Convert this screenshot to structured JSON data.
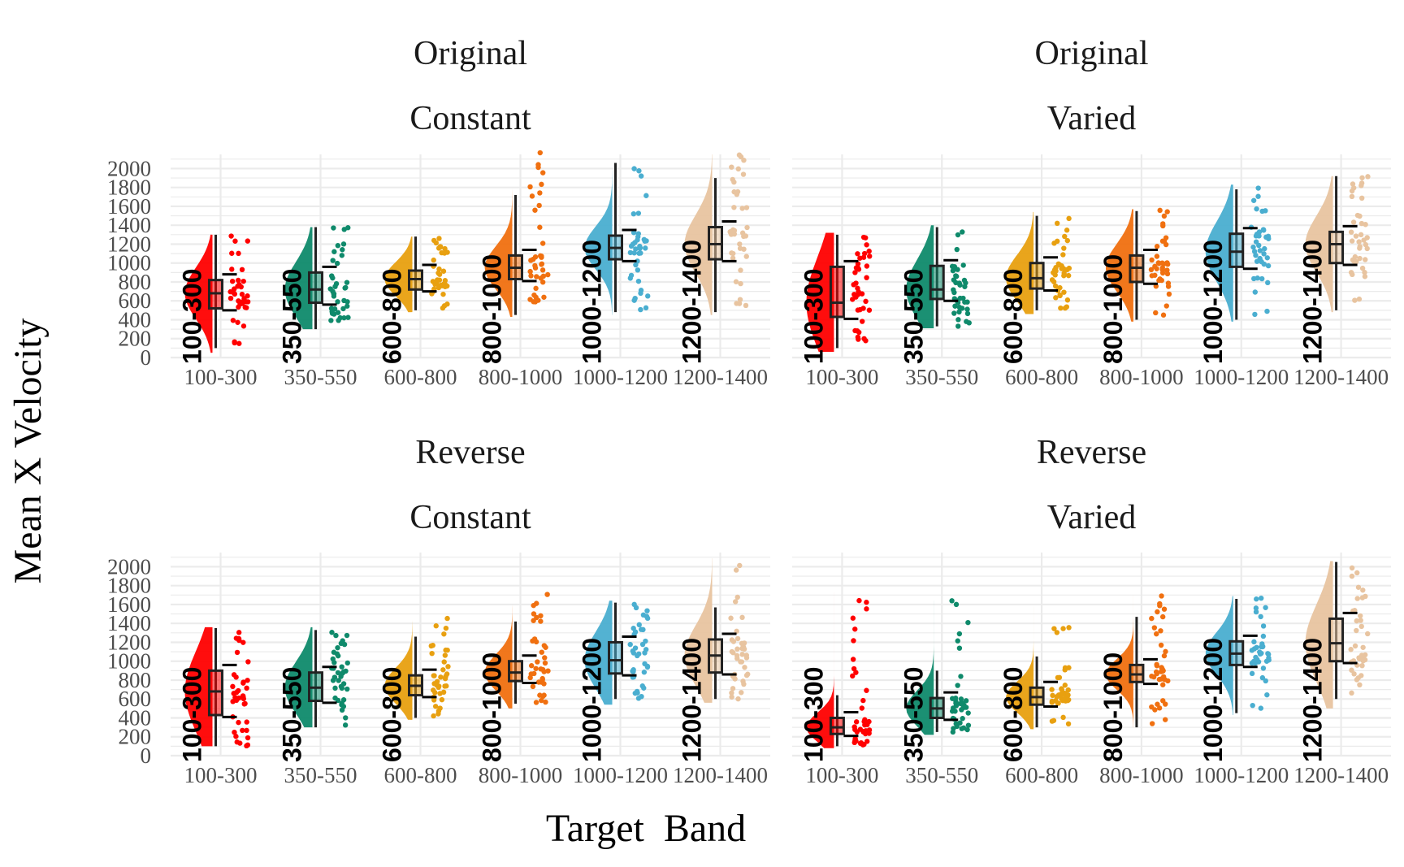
{
  "chart_data": {
    "type": "raincloud",
    "xlabel": "Target  Band",
    "ylabel": "Mean X Velocity",
    "ylim": [
      0,
      2150
    ],
    "y_ticks": [
      0,
      200,
      400,
      600,
      800,
      1000,
      1200,
      1400,
      1600,
      1800,
      2000
    ],
    "y_tick_labels": [
      "0",
      "200",
      "400",
      "600",
      "800",
      "1000",
      "1200",
      "1400",
      "1600",
      "1800",
      "2000"
    ],
    "grid": true,
    "legend": "none",
    "categories": [
      "100-300",
      "350-550",
      "600-800",
      "800-1000",
      "1000-1200",
      "1200-1400"
    ],
    "colors": [
      "#ff0000",
      "#0f8a6b",
      "#e8a010",
      "#f07010",
      "#4aaed0",
      "#e8c4a0"
    ],
    "panels": [
      {
        "strip": [
          "Original",
          "Constant"
        ],
        "boxes": [
          {
            "min": 100,
            "q1": 520,
            "median": 680,
            "q3": 820,
            "max": 1300,
            "lo": 50,
            "hi": 1300
          },
          {
            "min": 300,
            "q1": 580,
            "median": 720,
            "q3": 900,
            "max": 1380,
            "lo": 300,
            "hi": 1380
          },
          {
            "min": 500,
            "q1": 720,
            "median": 830,
            "q3": 920,
            "max": 1280,
            "lo": 480,
            "hi": 1280
          },
          {
            "min": 450,
            "q1": 830,
            "median": 950,
            "q3": 1080,
            "max": 1720,
            "lo": 430,
            "hi": 2200
          },
          {
            "min": 480,
            "q1": 1040,
            "median": 1160,
            "q3": 1290,
            "max": 2060,
            "lo": 450,
            "hi": 2060
          },
          {
            "min": 480,
            "q1": 1040,
            "median": 1200,
            "q3": 1380,
            "max": 1900,
            "lo": 450,
            "hi": 2150
          }
        ]
      },
      {
        "strip": [
          "Original",
          "Varied"
        ],
        "boxes": [
          {
            "min": 100,
            "q1": 430,
            "median": 580,
            "q3": 960,
            "max": 1300,
            "lo": 60,
            "hi": 1320
          },
          {
            "min": 330,
            "q1": 620,
            "median": 720,
            "q3": 970,
            "max": 1380,
            "lo": 310,
            "hi": 1400
          },
          {
            "min": 500,
            "q1": 730,
            "median": 840,
            "q3": 1000,
            "max": 1500,
            "lo": 460,
            "hi": 1540
          },
          {
            "min": 400,
            "q1": 800,
            "median": 950,
            "q3": 1080,
            "max": 1550,
            "lo": 380,
            "hi": 1570
          },
          {
            "min": 400,
            "q1": 960,
            "median": 1120,
            "q3": 1310,
            "max": 1780,
            "lo": 380,
            "hi": 1830
          },
          {
            "min": 500,
            "q1": 1000,
            "median": 1200,
            "q3": 1330,
            "max": 1920,
            "lo": 480,
            "hi": 1920
          }
        ]
      },
      {
        "strip": [
          "Reverse",
          "Constant"
        ],
        "boxes": [
          {
            "min": 100,
            "q1": 430,
            "median": 680,
            "q3": 900,
            "max": 1350,
            "lo": 100,
            "hi": 1360
          },
          {
            "min": 300,
            "q1": 580,
            "median": 720,
            "q3": 880,
            "max": 1330,
            "lo": 300,
            "hi": 1360
          },
          {
            "min": 400,
            "q1": 640,
            "median": 740,
            "q3": 850,
            "max": 1260,
            "lo": 380,
            "hi": 1470
          },
          {
            "min": 550,
            "q1": 790,
            "median": 880,
            "q3": 1000,
            "max": 1420,
            "lo": 500,
            "hi": 1820
          },
          {
            "min": 600,
            "q1": 870,
            "median": 1010,
            "q3": 1200,
            "max": 1620,
            "lo": 540,
            "hi": 1640
          },
          {
            "min": 600,
            "q1": 880,
            "median": 1060,
            "q3": 1230,
            "max": 1570,
            "lo": 560,
            "hi": 2090
          }
        ]
      },
      {
        "strip": [
          "Reverse",
          "Varied"
        ],
        "boxes": [
          {
            "min": 100,
            "q1": 230,
            "median": 300,
            "q3": 400,
            "max": 640,
            "lo": 80,
            "hi": 1730
          },
          {
            "min": 250,
            "q1": 400,
            "median": 500,
            "q3": 610,
            "max": 900,
            "lo": 220,
            "hi": 1640
          },
          {
            "min": 300,
            "q1": 540,
            "median": 620,
            "q3": 720,
            "max": 1050,
            "lo": 280,
            "hi": 1580
          },
          {
            "min": 300,
            "q1": 780,
            "median": 860,
            "q3": 960,
            "max": 1470,
            "lo": 300,
            "hi": 1700
          },
          {
            "min": 450,
            "q1": 960,
            "median": 1080,
            "q3": 1210,
            "max": 1660,
            "lo": 430,
            "hi": 1690
          },
          {
            "min": 600,
            "q1": 1000,
            "median": 1190,
            "q3": 1450,
            "max": 2050,
            "lo": 500,
            "hi": 2060
          }
        ]
      }
    ]
  }
}
